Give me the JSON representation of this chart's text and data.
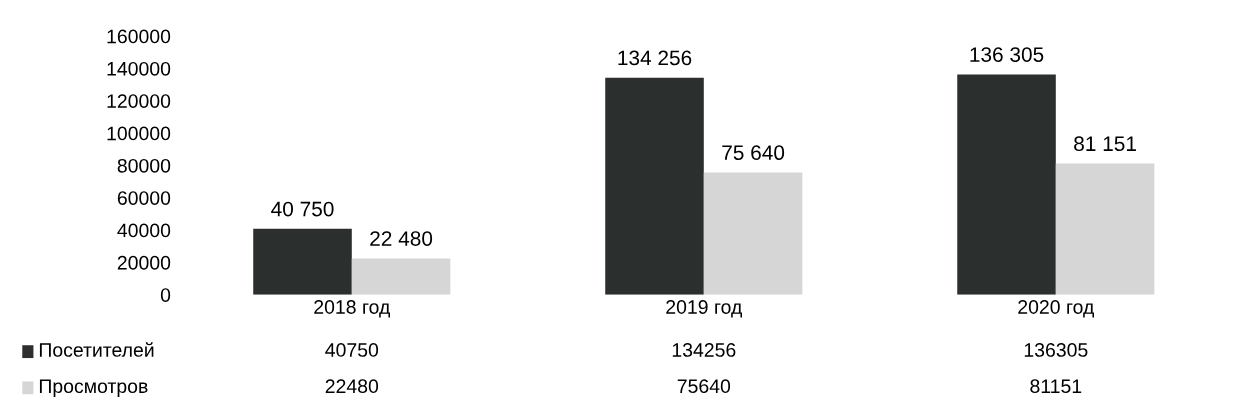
{
  "chart_data": {
    "type": "bar",
    "categories": [
      "2018 год",
      "2019 год",
      "2020 год"
    ],
    "series": [
      {
        "name": "Посетителей",
        "color": "#2b2f2e",
        "values": [
          40750,
          134256,
          136305
        ],
        "value_labels": [
          "40 750",
          "134 256",
          "136 305"
        ]
      },
      {
        "name": "Просмотров",
        "color": "#d6d6d6",
        "values": [
          22480,
          75640,
          81151
        ],
        "value_labels": [
          "22 480",
          "75 640",
          "81 151"
        ]
      }
    ],
    "ylim": [
      0,
      160000
    ],
    "yticks": [
      0,
      20000,
      40000,
      60000,
      80000,
      100000,
      120000,
      140000,
      160000
    ],
    "grid": false,
    "legend": "bottom",
    "annotations": [
      "40750",
      "134256",
      "136305",
      "22480",
      "75640",
      "81151"
    ]
  }
}
